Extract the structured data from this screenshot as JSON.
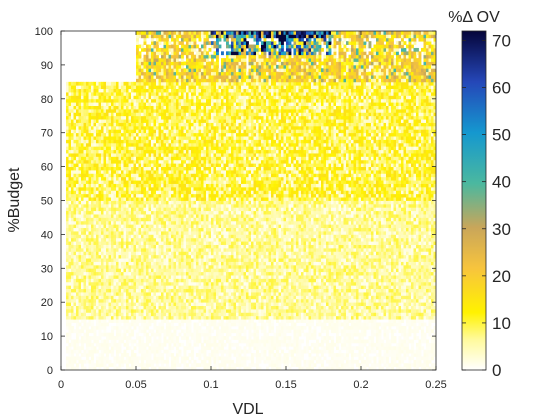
{
  "chart_data": {
    "type": "heatmap",
    "title": "",
    "xlabel": "VDL",
    "ylabel": "%Budget",
    "xlim": [
      0,
      0.25
    ],
    "ylim": [
      0,
      100
    ],
    "xticks": [
      0,
      0.05,
      0.1,
      0.15,
      0.2,
      0.25
    ],
    "xtick_labels": [
      "0",
      "0.05",
      "0.1",
      "0.15",
      "0.2",
      "0.25"
    ],
    "yticks": [
      0,
      10,
      20,
      30,
      40,
      50,
      60,
      70,
      80,
      90,
      100
    ],
    "ytick_labels": [
      "0",
      "10",
      "20",
      "30",
      "40",
      "50",
      "60",
      "70",
      "80",
      "90",
      "100"
    ],
    "grid": false,
    "colorbar": {
      "label": "%Δ OV",
      "range": [
        0,
        72
      ],
      "ticks": [
        0,
        10,
        20,
        30,
        40,
        50,
        60,
        70
      ],
      "tick_labels": [
        "0",
        "10",
        "20",
        "30",
        "40",
        "50",
        "60",
        "70"
      ],
      "colormap": "parula-like, white at 0 through yellow, orange, teal, blue to dark navy",
      "colors": [
        "#ffffff",
        "#fffb0a",
        "#f8bc3a",
        "#42b7a5",
        "#0b7bd4",
        "#000044"
      ]
    },
    "value_regions": [
      {
        "x": [
          0,
          0.25
        ],
        "y": [
          0,
          15
        ],
        "value": 1
      },
      {
        "x": [
          0,
          0.25
        ],
        "y": [
          15,
          50
        ],
        "value": 7
      },
      {
        "x": [
          0,
          0.25
        ],
        "y": [
          50,
          85
        ],
        "value": 11
      },
      {
        "x": [
          0.05,
          0.25
        ],
        "y": [
          85,
          100
        ],
        "value": 18
      },
      {
        "x": [
          0.1,
          0.18
        ],
        "y": [
          93,
          100
        ],
        "value": 45
      },
      {
        "x": [
          0.13,
          0.175
        ],
        "y": [
          98,
          100
        ],
        "value": 68
      }
    ]
  }
}
